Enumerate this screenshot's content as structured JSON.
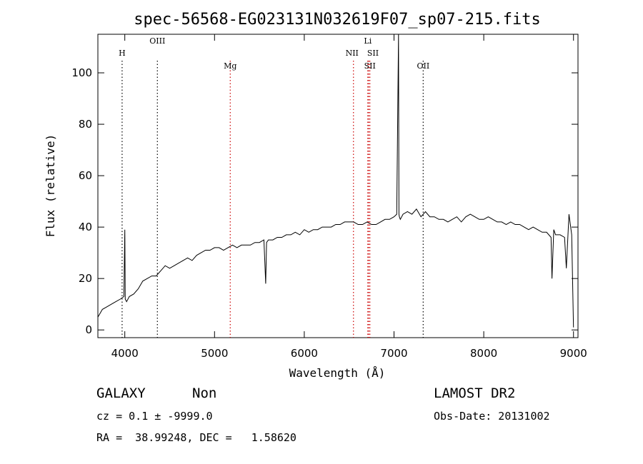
{
  "chart_data": {
    "type": "line",
    "title": "spec-56568-EG023131N032619F07_sp07-215.fits",
    "xlabel": "Wavelength (Å)",
    "ylabel": "Flux (relative)",
    "xlim": [
      3700,
      9050
    ],
    "ylim": [
      -3,
      115
    ],
    "xticks": [
      4000,
      5000,
      6000,
      7000,
      8000,
      9000
    ],
    "yticks": [
      0,
      20,
      40,
      60,
      80,
      100
    ],
    "grid": false,
    "series": [
      {
        "x": [
          3700,
          3750,
          3800,
          3850,
          3900,
          3950,
          3990,
          4000,
          4005,
          4020,
          4050,
          4100,
          4150,
          4200,
          4250,
          4300,
          4350,
          4400,
          4450,
          4500,
          4550,
          4600,
          4650,
          4700,
          4750,
          4800,
          4850,
          4900,
          4950,
          5000,
          5050,
          5100,
          5150,
          5200,
          5250,
          5300,
          5350,
          5400,
          5450,
          5500,
          5550,
          5570,
          5580,
          5600,
          5650,
          5700,
          5750,
          5800,
          5850,
          5900,
          5950,
          6000,
          6050,
          6100,
          6150,
          6200,
          6250,
          6300,
          6350,
          6400,
          6450,
          6500,
          6550,
          6600,
          6650,
          6700,
          6750,
          6800,
          6850,
          6900,
          6950,
          7000,
          7030,
          7050,
          7055,
          7060,
          7070,
          7100,
          7150,
          7200,
          7250,
          7300,
          7350,
          7400,
          7450,
          7500,
          7550,
          7600,
          7650,
          7700,
          7750,
          7800,
          7850,
          7900,
          7950,
          8000,
          8050,
          8100,
          8150,
          8200,
          8250,
          8300,
          8350,
          8400,
          8450,
          8500,
          8550,
          8600,
          8650,
          8700,
          8750,
          8760,
          8780,
          8800,
          8850,
          8900,
          8920,
          8950,
          8980,
          9000
        ],
        "y": [
          5,
          8,
          9,
          10,
          11,
          12,
          13,
          39,
          12,
          11,
          13,
          14,
          16,
          19,
          20,
          21,
          21,
          23,
          25,
          24,
          25,
          26,
          27,
          28,
          27,
          29,
          30,
          31,
          31,
          32,
          32,
          31,
          32,
          33,
          32,
          33,
          33,
          33,
          34,
          34,
          35,
          18,
          34,
          35,
          35,
          36,
          36,
          37,
          37,
          38,
          37,
          39,
          38,
          39,
          39,
          40,
          40,
          40,
          41,
          41,
          42,
          42,
          42,
          41,
          41,
          42,
          41,
          41,
          42,
          43,
          43,
          44,
          45,
          115,
          45,
          44,
          43,
          45,
          46,
          45,
          47,
          44,
          46,
          44,
          44,
          43,
          43,
          42,
          43,
          44,
          42,
          44,
          45,
          44,
          43,
          43,
          44,
          43,
          42,
          42,
          41,
          42,
          41,
          41,
          40,
          39,
          40,
          39,
          38,
          38,
          36,
          20,
          39,
          37,
          37,
          36,
          24,
          45,
          37,
          1
        ]
      }
    ],
    "line_markers": [
      {
        "label": "H",
        "x": 3970,
        "color": "#000000"
      },
      {
        "label": "OIII",
        "x": 4363,
        "color": "#000000"
      },
      {
        "label": "Mg",
        "x": 5175,
        "color": "#cc0000"
      },
      {
        "label": "NII",
        "x": 6548,
        "color": "#cc0000"
      },
      {
        "label": "Li",
        "x": 6708,
        "color": "#cc0000"
      },
      {
        "label": "SII",
        "x": 6717,
        "color": "#cc0000"
      },
      {
        "label": "SII",
        "x": 6731,
        "color": "#cc0000"
      },
      {
        "label": "OII",
        "x": 7325,
        "color": "#000000"
      }
    ],
    "colors": {
      "spectrum": "#000000",
      "axes": "#000000",
      "marker_red": "#cc0000",
      "marker_black": "#000000"
    }
  },
  "info": {
    "class_label": "GALAXY",
    "subclass": "Non",
    "survey": "LAMOST DR2",
    "cz_line": "cz = 0.1 ± -9999.0",
    "obs_date": "Obs-Date: 20131002",
    "radec_line": "RA =  38.99248, DEC =   1.58620"
  }
}
